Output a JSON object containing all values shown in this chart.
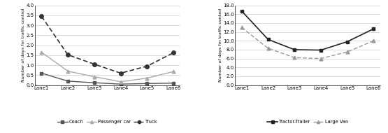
{
  "lanes": [
    "Lane1",
    "Lane2",
    "Lane3",
    "Lane4",
    "Lane5",
    "Lane6"
  ],
  "coach": [
    0.6,
    0.2,
    0.12,
    0.05,
    0.08,
    0.1
  ],
  "passenger_car": [
    1.65,
    0.7,
    0.42,
    0.17,
    0.35,
    0.68
  ],
  "truck": [
    3.45,
    1.52,
    1.05,
    0.6,
    0.95,
    1.62
  ],
  "tractor_trailer": [
    16.7,
    10.3,
    8.0,
    7.9,
    9.8,
    12.7
  ],
  "large_van": [
    13.0,
    8.3,
    6.2,
    6.0,
    7.5,
    10.0
  ],
  "ylabel": "Number of days for traffic control",
  "ylim1": [
    0.0,
    4.0
  ],
  "ylim2": [
    0.0,
    18.0
  ],
  "yticks1": [
    0.0,
    0.5,
    1.0,
    1.5,
    2.0,
    2.5,
    3.0,
    3.5,
    4.0
  ],
  "yticks2": [
    0.0,
    2.0,
    4.0,
    6.0,
    8.0,
    10.0,
    12.0,
    14.0,
    16.0,
    18.0
  ],
  "coach_color": "#555555",
  "passenger_car_color": "#aaaaaa",
  "truck_color": "#333333",
  "tractor_trailer_color": "#222222",
  "large_van_color": "#999999",
  "figsize": [
    5.55,
    1.9
  ],
  "dpi": 100
}
